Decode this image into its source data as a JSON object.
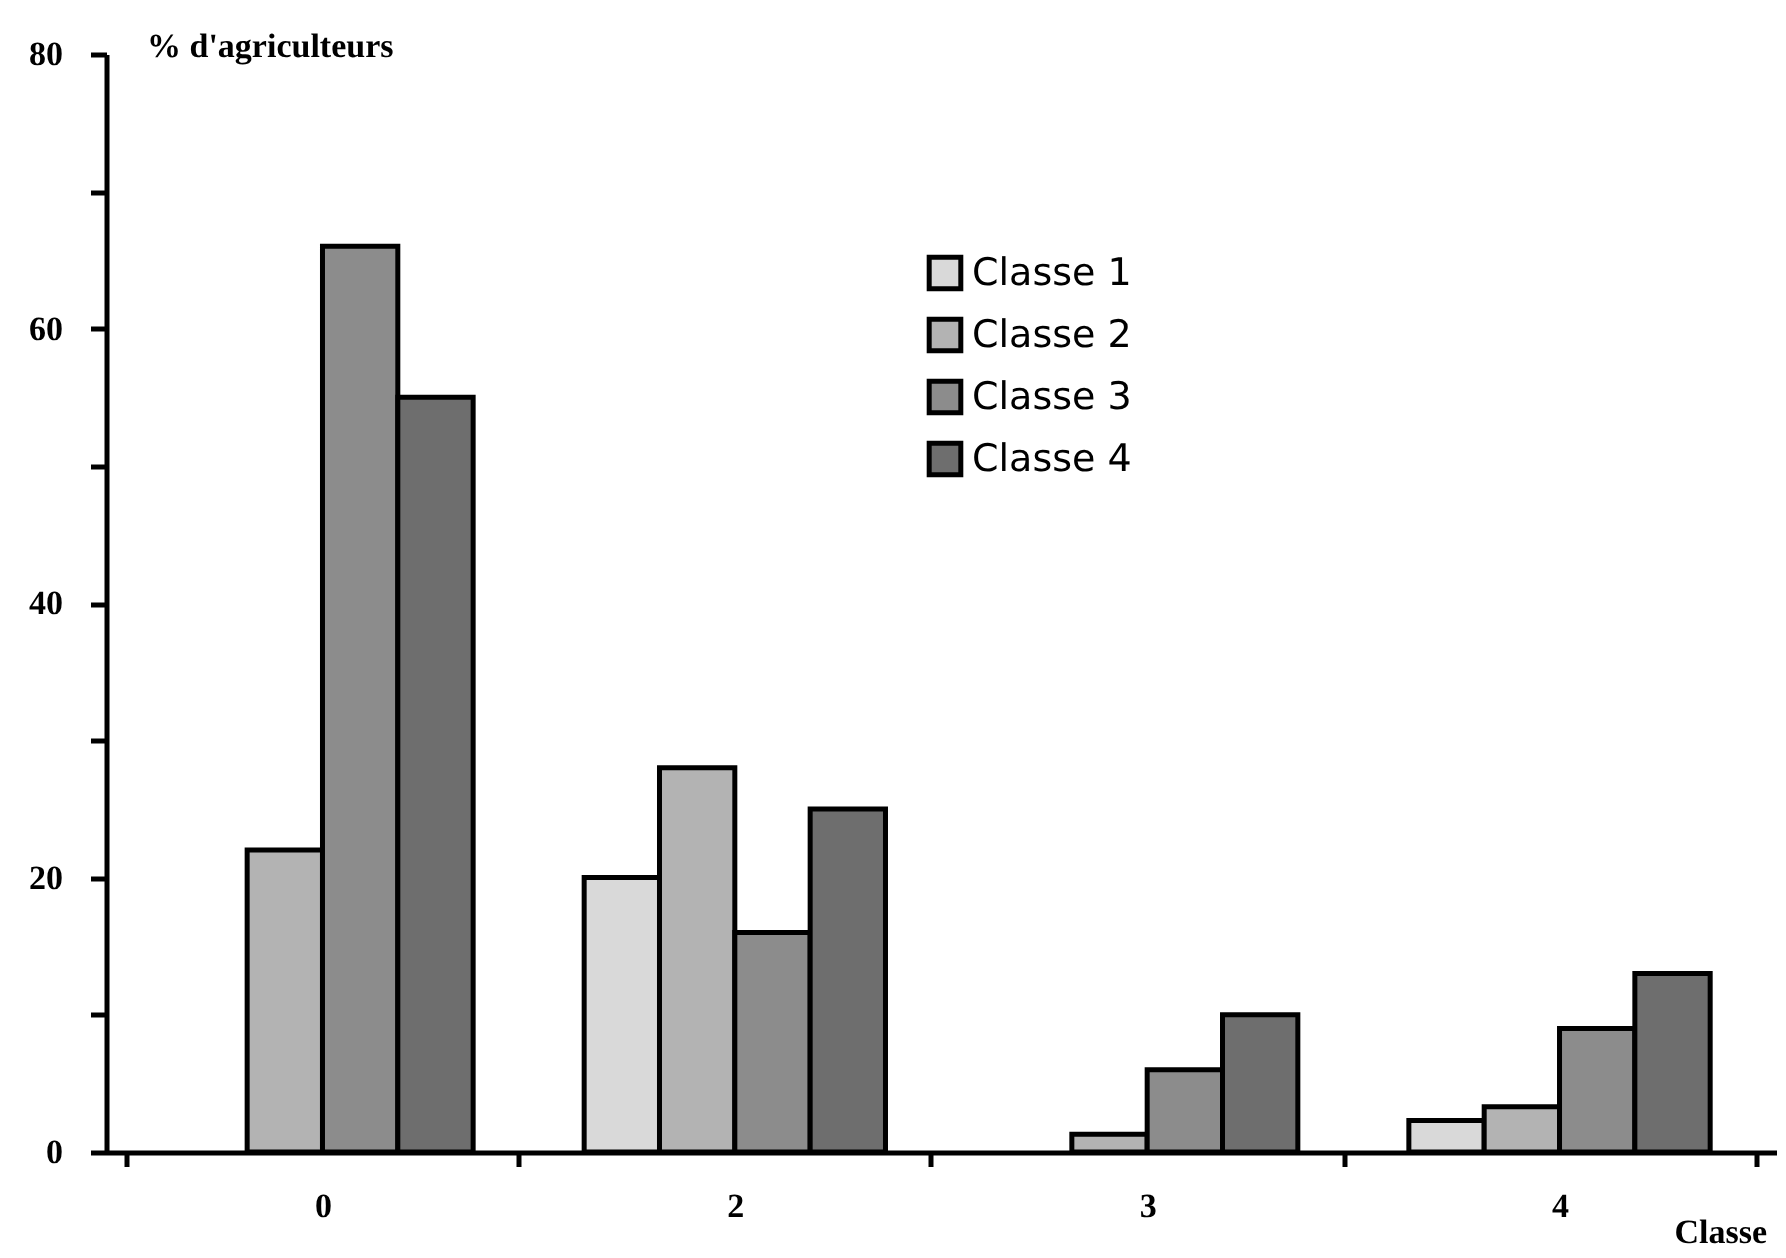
{
  "chart_data": {
    "type": "bar",
    "xlabel": "Classe",
    "ylabel": "% d'agriculteurs",
    "categories": [
      "0",
      "2",
      "3",
      "4"
    ],
    "series": [
      {
        "name": "Classe 1",
        "color": "#d9d9d9",
        "values": [
          null,
          20,
          null,
          2.3
        ]
      },
      {
        "name": "Classe 2",
        "color": "#b3b3b3",
        "values": [
          22,
          28,
          1.3,
          3.3
        ]
      },
      {
        "name": "Classe 3",
        "color": "#8c8c8c",
        "values": [
          66,
          16,
          6,
          9
        ]
      },
      {
        "name": "Classe 4",
        "color": "#6e6e6e",
        "values": [
          55,
          25,
          10,
          13
        ]
      }
    ],
    "ylim": [
      0,
      80
    ],
    "yticks": [
      0,
      {
        "value": 10,
        "label": null
      },
      20,
      {
        "value": 30,
        "label": null
      },
      40,
      {
        "value": 50,
        "label": null
      },
      60,
      {
        "value": 70,
        "label": null
      },
      80
    ],
    "grid": false,
    "legend": "top right"
  }
}
